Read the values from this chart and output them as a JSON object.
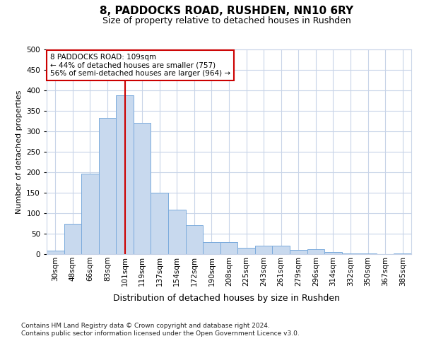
{
  "title1": "8, PADDOCKS ROAD, RUSHDEN, NN10 6RY",
  "title2": "Size of property relative to detached houses in Rushden",
  "xlabel": "Distribution of detached houses by size in Rushden",
  "ylabel": "Number of detached properties",
  "categories": [
    "30sqm",
    "48sqm",
    "66sqm",
    "83sqm",
    "101sqm",
    "119sqm",
    "137sqm",
    "154sqm",
    "172sqm",
    "190sqm",
    "208sqm",
    "225sqm",
    "243sqm",
    "261sqm",
    "279sqm",
    "296sqm",
    "314sqm",
    "332sqm",
    "350sqm",
    "367sqm",
    "385sqm"
  ],
  "values": [
    8,
    75,
    197,
    333,
    388,
    320,
    150,
    108,
    70,
    30,
    30,
    15,
    20,
    20,
    10,
    12,
    6,
    2,
    1,
    0,
    1
  ],
  "bar_color": "#c8d9ee",
  "bar_edge_color": "#7aaadc",
  "vline_x": 4,
  "vline_color": "#cc0000",
  "annotation_text": "8 PADDOCKS ROAD: 109sqm\n← 44% of detached houses are smaller (757)\n56% of semi-detached houses are larger (964) →",
  "annotation_box_color": "#ffffff",
  "annotation_box_edge": "#cc0000",
  "footer": "Contains HM Land Registry data © Crown copyright and database right 2024.\nContains public sector information licensed under the Open Government Licence v3.0.",
  "ylim": [
    0,
    500
  ],
  "yticks": [
    0,
    50,
    100,
    150,
    200,
    250,
    300,
    350,
    400,
    450,
    500
  ],
  "bg_color": "#ffffff",
  "grid_color": "#c8d4e8",
  "title1_fontsize": 11,
  "title2_fontsize": 9,
  "xlabel_fontsize": 9,
  "ylabel_fontsize": 8,
  "tick_fontsize": 7.5,
  "footer_fontsize": 6.5,
  "annotation_fontsize": 7.5
}
